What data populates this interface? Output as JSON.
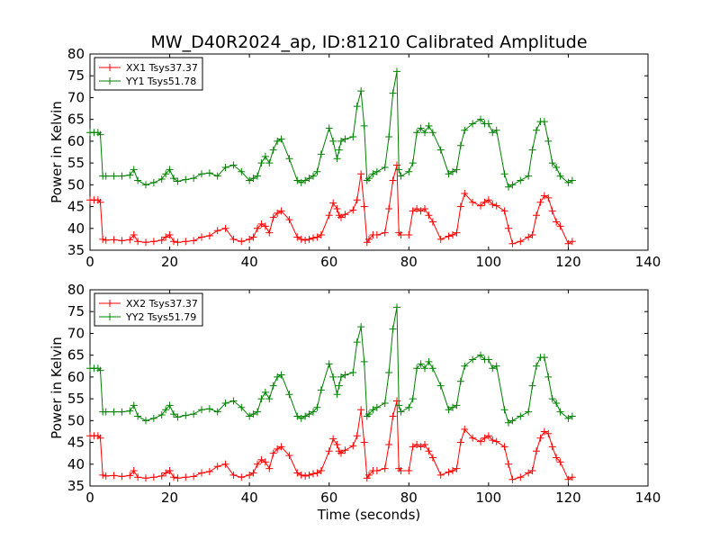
{
  "figure_title": "MW_D40R2024_ap, ID:81210 Calibrated Amplitude",
  "colors": {
    "xx": "#ff0000",
    "yy": "#008000",
    "axes": "#000000",
    "background": "#ffffff"
  },
  "chart_data": [
    {
      "type": "line",
      "title": "MW_D40R2024_ap, ID:81210 Calibrated Amplitude",
      "xlabel": "",
      "ylabel": "Power in Kelvin",
      "xlim": [
        0,
        140
      ],
      "ylim": [
        35,
        80
      ],
      "xticks": [
        "0",
        "20",
        "40",
        "60",
        "80",
        "100",
        "120",
        "140"
      ],
      "yticks": [
        "35",
        "40",
        "45",
        "50",
        "55",
        "60",
        "65",
        "70",
        "75",
        "80"
      ],
      "grid": false,
      "legend_position": "top-left",
      "marker": "plus",
      "series": [
        {
          "name": "XX1 Tsys37.37",
          "color": "#ff0000",
          "x": [
            0,
            1,
            2,
            2.6,
            3.2,
            4,
            6,
            8,
            10,
            11,
            12,
            14,
            16,
            18,
            19,
            20,
            21,
            22,
            24,
            26,
            28,
            30,
            32,
            34,
            36,
            38,
            40,
            41,
            42,
            43,
            44,
            45,
            46,
            47,
            48,
            50,
            52,
            53,
            54,
            55,
            56,
            57,
            58,
            60,
            61,
            62,
            62.5,
            63,
            64,
            66,
            67,
            68,
            68.8,
            69.5,
            70,
            71,
            72,
            74,
            75,
            76,
            77,
            77.5,
            78,
            80,
            81,
            82,
            83,
            84,
            85,
            86,
            88,
            90,
            91,
            92,
            93,
            94,
            96,
            98,
            99,
            100,
            101,
            102,
            104,
            105,
            106,
            108,
            110,
            111,
            112,
            113,
            114,
            115,
            116,
            117,
            118,
            120,
            121
          ],
          "y": [
            46.5,
            46.5,
            46.5,
            46,
            37.5,
            37.3,
            37.4,
            37.2,
            37.4,
            38.5,
            37,
            36.8,
            37,
            37.3,
            38,
            38.5,
            37,
            36.8,
            37,
            37.2,
            38,
            38.3,
            39.5,
            40,
            37.5,
            37,
            37.5,
            38,
            40,
            41,
            40.5,
            39,
            42.5,
            43.5,
            44,
            42,
            38,
            37.5,
            37.3,
            37.5,
            37.8,
            38,
            38.5,
            43,
            45.8,
            44.5,
            43,
            42.5,
            43.2,
            44.2,
            46.5,
            52.5,
            45,
            36.8,
            37.5,
            38.5,
            38.5,
            39,
            44.5,
            51,
            54.5,
            39,
            38.5,
            38.5,
            44,
            44.5,
            44,
            44.5,
            43,
            41.5,
            37.5,
            38.2,
            38.5,
            39,
            45,
            48,
            46,
            45.2,
            46,
            46.5,
            45.5,
            45.2,
            44,
            40,
            36.5,
            37,
            38,
            38.5,
            43,
            46,
            47.5,
            47,
            44,
            41.5,
            40.5,
            36.5,
            37
          ]
        },
        {
          "name": "YY1 Tsys51.78",
          "color": "#008000",
          "x": [
            0,
            1,
            2,
            2.6,
            3.2,
            4,
            6,
            8,
            10,
            11,
            12,
            14,
            16,
            18,
            19,
            20,
            21,
            22,
            24,
            26,
            28,
            30,
            32,
            34,
            36,
            38,
            40,
            41,
            42,
            43,
            44,
            45,
            46,
            47,
            48,
            50,
            52,
            53,
            54,
            55,
            56,
            57,
            58,
            60,
            61,
            62,
            62.5,
            63,
            64,
            66,
            67,
            68,
            68.8,
            69.5,
            70,
            71,
            72,
            74,
            75,
            76,
            77,
            77.5,
            78,
            80,
            81,
            82,
            83,
            84,
            85,
            86,
            88,
            90,
            91,
            92,
            93,
            94,
            96,
            98,
            99,
            100,
            101,
            102,
            104,
            105,
            106,
            108,
            110,
            111,
            112,
            113,
            114,
            115,
            116,
            117,
            118,
            120,
            121
          ],
          "y": [
            62,
            62,
            62,
            61.5,
            52,
            52,
            52,
            52,
            52.2,
            53.5,
            51,
            50,
            50.5,
            51.3,
            52.5,
            53.5,
            51.5,
            50.8,
            51.2,
            51.5,
            52.5,
            52.7,
            52,
            54,
            54.5,
            53,
            51,
            51.5,
            52,
            55,
            56.5,
            55,
            58,
            60,
            60.5,
            56,
            51,
            50.5,
            51,
            51.5,
            52,
            53,
            57,
            63,
            60,
            56,
            58,
            60,
            60.5,
            61,
            68,
            71.5,
            63.5,
            51,
            51.5,
            52.5,
            53,
            54,
            61,
            71,
            76,
            53.5,
            52,
            53,
            55,
            62,
            63,
            62,
            63.5,
            62,
            58,
            52.5,
            53,
            53.5,
            59,
            62.5,
            64,
            65,
            64,
            64,
            62,
            62.5,
            52.5,
            49.5,
            50,
            51,
            52,
            58,
            62.5,
            64.5,
            64.5,
            60,
            55,
            54,
            52,
            50.5,
            51
          ]
        }
      ]
    },
    {
      "type": "line",
      "title": "",
      "xlabel": "Time (seconds)",
      "ylabel": "Power in Kelvin",
      "xlim": [
        0,
        140
      ],
      "ylim": [
        35,
        80
      ],
      "xticks": [
        "0",
        "20",
        "40",
        "60",
        "80",
        "100",
        "120",
        "140"
      ],
      "yticks": [
        "35",
        "40",
        "45",
        "50",
        "55",
        "60",
        "65",
        "70",
        "75",
        "80"
      ],
      "grid": false,
      "legend_position": "top-left",
      "marker": "plus",
      "series": [
        {
          "name": "XX2 Tsys37.37",
          "color": "#ff0000",
          "x": [
            0,
            1,
            2,
            2.6,
            3.2,
            4,
            6,
            8,
            10,
            11,
            12,
            14,
            16,
            18,
            19,
            20,
            21,
            22,
            24,
            26,
            28,
            30,
            32,
            34,
            36,
            38,
            40,
            41,
            42,
            43,
            44,
            45,
            46,
            47,
            48,
            50,
            52,
            53,
            54,
            55,
            56,
            57,
            58,
            60,
            61,
            62,
            62.5,
            63,
            64,
            66,
            67,
            68,
            68.8,
            69.5,
            70,
            71,
            72,
            74,
            75,
            76,
            77,
            77.5,
            78,
            80,
            81,
            82,
            83,
            84,
            85,
            86,
            88,
            90,
            91,
            92,
            93,
            94,
            96,
            98,
            99,
            100,
            101,
            102,
            104,
            105,
            106,
            108,
            110,
            111,
            112,
            113,
            114,
            115,
            116,
            117,
            118,
            120,
            121
          ],
          "y": [
            46.5,
            46.5,
            46.5,
            46,
            37.5,
            37.3,
            37.4,
            37.2,
            37.4,
            38.5,
            37,
            36.8,
            37,
            37.3,
            38,
            38.5,
            37,
            36.8,
            37,
            37.2,
            38,
            38.3,
            39.5,
            40,
            37.5,
            37,
            37.5,
            38,
            40,
            41,
            40.5,
            39,
            42.5,
            43.5,
            44,
            42,
            38,
            37.5,
            37.3,
            37.5,
            37.8,
            38,
            38.5,
            43,
            45.8,
            44.5,
            43,
            42.5,
            43.2,
            44.2,
            46.5,
            52.5,
            45,
            36.8,
            37.5,
            38.5,
            38.5,
            39,
            44.5,
            51,
            54.5,
            39,
            38.5,
            38.5,
            44,
            44.5,
            44,
            44.5,
            43,
            41.5,
            37.5,
            38.2,
            38.5,
            39,
            45,
            48,
            46,
            45.2,
            46,
            46.5,
            45.5,
            45.2,
            44,
            40,
            36.5,
            37,
            38,
            38.5,
            43,
            46,
            47.5,
            47,
            44,
            41.5,
            40.5,
            36.5,
            37
          ]
        },
        {
          "name": "YY2 Tsys51.79",
          "color": "#008000",
          "x": [
            0,
            1,
            2,
            2.6,
            3.2,
            4,
            6,
            8,
            10,
            11,
            12,
            14,
            16,
            18,
            19,
            20,
            21,
            22,
            24,
            26,
            28,
            30,
            32,
            34,
            36,
            38,
            40,
            41,
            42,
            43,
            44,
            45,
            46,
            47,
            48,
            50,
            52,
            53,
            54,
            55,
            56,
            57,
            58,
            60,
            61,
            62,
            62.5,
            63,
            64,
            66,
            67,
            68,
            68.8,
            69.5,
            70,
            71,
            72,
            74,
            75,
            76,
            77,
            77.5,
            78,
            80,
            81,
            82,
            83,
            84,
            85,
            86,
            88,
            90,
            91,
            92,
            93,
            94,
            96,
            98,
            99,
            100,
            101,
            102,
            104,
            105,
            106,
            108,
            110,
            111,
            112,
            113,
            114,
            115,
            116,
            117,
            118,
            120,
            121
          ],
          "y": [
            62,
            62,
            62,
            61.5,
            52,
            52,
            52,
            52,
            52.2,
            53.5,
            51,
            50,
            50.5,
            51.3,
            52.5,
            53.5,
            51.5,
            50.8,
            51.2,
            51.5,
            52.5,
            52.7,
            52,
            54,
            54.5,
            53,
            51,
            51.5,
            52,
            55,
            56.5,
            55,
            58,
            60,
            60.5,
            56,
            51,
            50.5,
            51,
            51.5,
            52,
            53,
            57,
            63,
            60,
            56,
            58,
            60,
            60.5,
            61,
            68,
            71.5,
            63.5,
            51,
            51.5,
            52.5,
            53,
            54,
            61,
            71,
            76,
            53.5,
            52,
            53,
            55,
            62,
            63,
            62,
            63.5,
            62,
            58,
            52.5,
            53,
            53.5,
            59,
            62.5,
            64,
            65,
            64,
            64,
            62,
            62.5,
            52.5,
            49.5,
            50,
            51,
            52,
            58,
            62.5,
            64.5,
            64.5,
            60,
            55,
            54,
            52,
            50.5,
            51
          ]
        }
      ]
    }
  ]
}
